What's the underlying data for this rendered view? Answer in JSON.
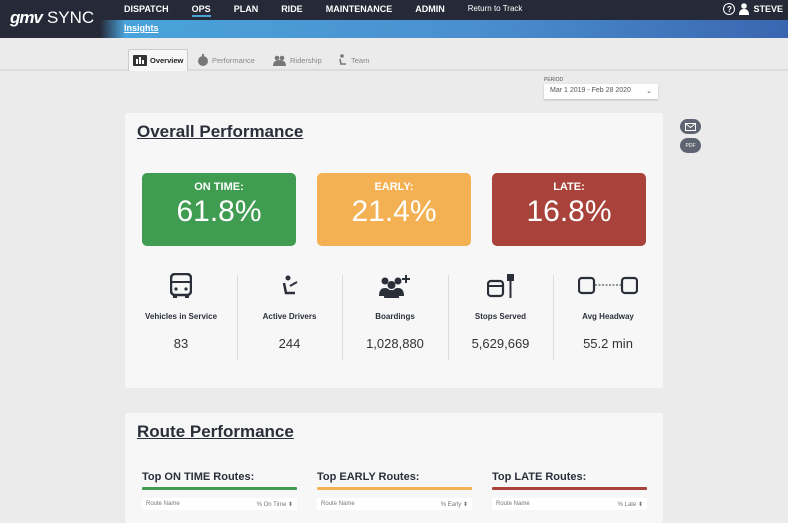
{
  "header": {
    "logo_mark": "gmv",
    "logo_text": "SYNC",
    "nav": [
      "DISPATCH",
      "OPS",
      "PLAN",
      "RIDE",
      "MAINTENANCE",
      "ADMIN"
    ],
    "return_link": "Return to Track",
    "user": "STEVE",
    "help": "?"
  },
  "subnav": {
    "active": "Insights"
  },
  "tabs": [
    {
      "label": "Overview",
      "icon": "bar-chart-icon"
    },
    {
      "label": "Performance",
      "icon": "stopwatch-icon"
    },
    {
      "label": "Ridership",
      "icon": "people-icon"
    },
    {
      "label": "Team",
      "icon": "driver-icon"
    }
  ],
  "period": {
    "label": "PERIOD",
    "value": "Mar 1 2019 - Feb 28 2020"
  },
  "overall": {
    "title": "Overall Performance",
    "boxes": [
      {
        "label": "ON TIME:",
        "value": "61.8%",
        "color": "#3f9c50"
      },
      {
        "label": "EARLY:",
        "value": "21.4%",
        "color": "#f4b154"
      },
      {
        "label": "LATE:",
        "value": "16.8%",
        "color": "#a8423a"
      }
    ],
    "metrics": [
      {
        "name": "Vehicles in Service",
        "value": "83"
      },
      {
        "name": "Active Drivers",
        "value": "244"
      },
      {
        "name": "Boardings",
        "value": "1,028,880"
      },
      {
        "name": "Stops Served",
        "value": "5,629,669"
      },
      {
        "name": "Avg Headway",
        "value": "55.2 min"
      }
    ]
  },
  "route": {
    "title": "Route Performance",
    "tables": [
      {
        "title": "Top ON TIME Routes:",
        "col1": "Route Name",
        "col2": "% On Time",
        "color": "#3f9c50"
      },
      {
        "title": "Top EARLY Routes:",
        "col1": "Route Name",
        "col2": "% Early",
        "color": "#f4b154"
      },
      {
        "title": "Top LATE Routes:",
        "col1": "Route Name",
        "col2": "% Late",
        "color": "#a8423a"
      }
    ]
  },
  "side": {
    "pdf": "PDF"
  }
}
